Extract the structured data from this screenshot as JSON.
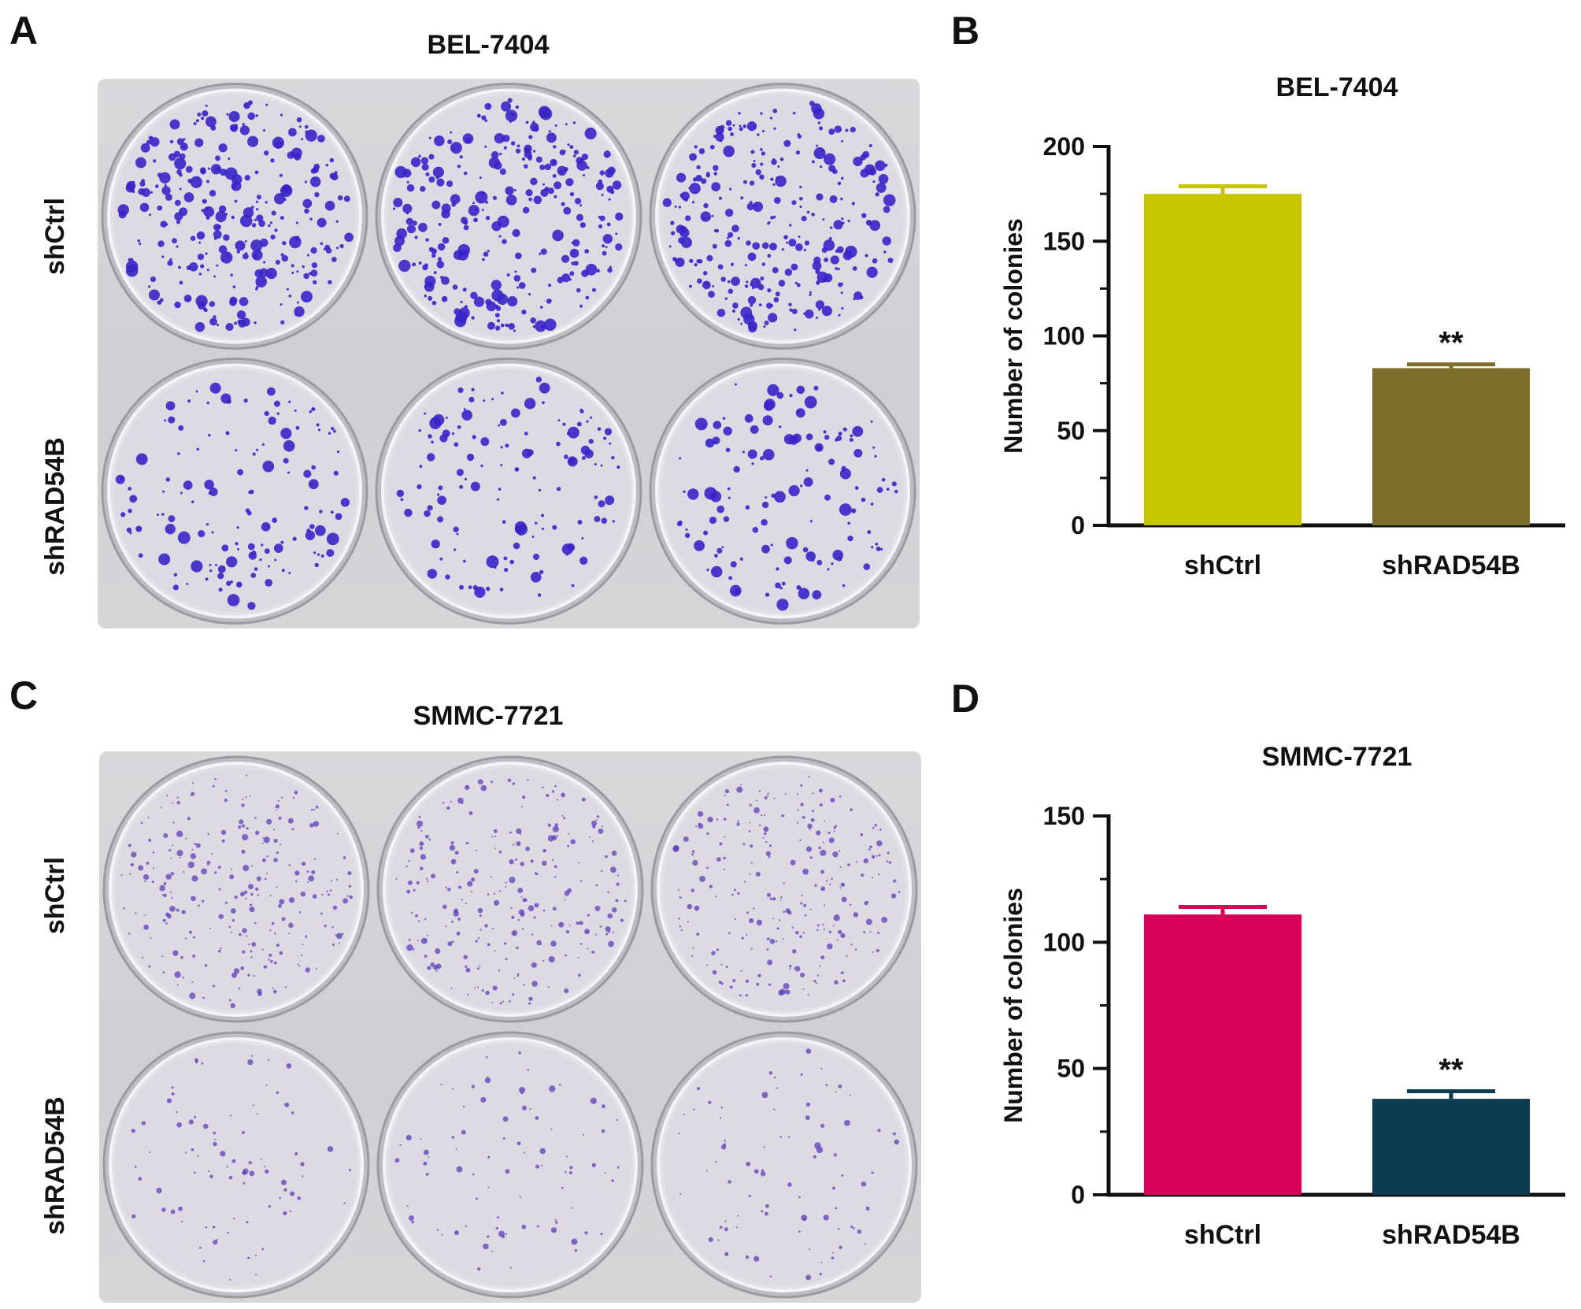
{
  "figure": {
    "panels": {
      "A": {
        "letter": "A",
        "title": "BEL-7404",
        "row_labels": [
          "shCtrl",
          "shRAD54B"
        ]
      },
      "B": {
        "letter": "B"
      },
      "C": {
        "letter": "C",
        "title": "SMMC-7721",
        "row_labels": [
          "shCtrl",
          "shRAD54B"
        ]
      },
      "D": {
        "letter": "D"
      }
    },
    "plates": [
      {
        "panel": "A",
        "wells": [
          {
            "row": "shCtrl",
            "colonies": 175
          },
          {
            "row": "shCtrl",
            "colonies": 175
          },
          {
            "row": "shCtrl",
            "colonies": 175
          },
          {
            "row": "shRAD54B",
            "colonies": 83
          },
          {
            "row": "shRAD54B",
            "colonies": 83
          },
          {
            "row": "shRAD54B",
            "colonies": 83
          }
        ],
        "colony_color": "#3a23c8",
        "colony_style": "large"
      },
      {
        "panel": "C",
        "wells": [
          {
            "row": "shCtrl",
            "colonies": 111
          },
          {
            "row": "shCtrl",
            "colonies": 111
          },
          {
            "row": "shCtrl",
            "colonies": 111
          },
          {
            "row": "shRAD54B",
            "colonies": 38
          },
          {
            "row": "shRAD54B",
            "colonies": 38
          },
          {
            "row": "shRAD54B",
            "colonies": 38
          }
        ],
        "colony_color": "#5a3fb8",
        "colony_style": "small"
      }
    ]
  },
  "chart_data": [
    {
      "panel": "B",
      "type": "bar",
      "title": "BEL-7404",
      "xlabel": "",
      "ylabel": "Number of colonies",
      "categories": [
        "shCtrl",
        "shRAD54B"
      ],
      "values": [
        175,
        83
      ],
      "errors": [
        4,
        2
      ],
      "colors": [
        "#c8c400",
        "#7d6e2a"
      ],
      "annotations": [
        {
          "category": "shRAD54B",
          "text": "**"
        }
      ],
      "ylim": [
        0,
        200
      ],
      "yticks": [
        0,
        50,
        100,
        150,
        200
      ],
      "minor_ticks": true,
      "grid": false,
      "legend": "none"
    },
    {
      "panel": "D",
      "type": "bar",
      "title": "SMMC-7721",
      "xlabel": "",
      "ylabel": "Number of colonies",
      "categories": [
        "shCtrl",
        "shRAD54B"
      ],
      "values": [
        111,
        38
      ],
      "errors": [
        3,
        3
      ],
      "colors": [
        "#d9005a",
        "#0c3b52"
      ],
      "annotations": [
        {
          "category": "shRAD54B",
          "text": "**"
        }
      ],
      "ylim": [
        0,
        150
      ],
      "yticks": [
        0,
        50,
        100,
        150
      ],
      "minor_ticks": true,
      "grid": false,
      "legend": "none"
    }
  ]
}
